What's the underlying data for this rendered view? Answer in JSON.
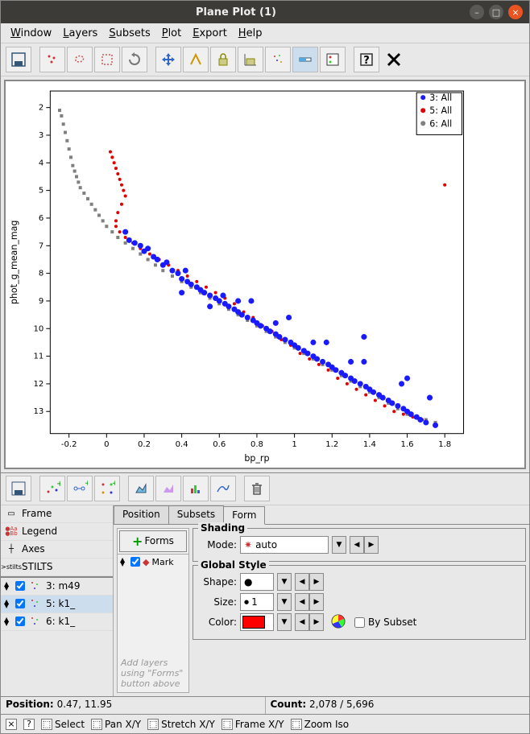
{
  "window": {
    "title": "Plane Plot (1)"
  },
  "menu": {
    "items": [
      "Window",
      "Layers",
      "Subsets",
      "Plot",
      "Export",
      "Help"
    ]
  },
  "status": {
    "position_label": "Position:",
    "position_value": "0.47, 11.95",
    "count_label": "Count:",
    "count_value": "2,078 / 5,696"
  },
  "bottom": {
    "select": "Select",
    "pan": "Pan X/Y",
    "stretch": "Stretch X/Y",
    "frame": "Frame X/Y",
    "zoom": "Zoom Iso"
  },
  "sidebar": {
    "frame": "Frame",
    "legend": "Legend",
    "axes": "Axes",
    "stilts": "STILTS",
    "layers": [
      {
        "label": "3: m49",
        "checked": true
      },
      {
        "label": "5: k1_",
        "checked": true,
        "selected": true
      },
      {
        "label": "6: k1_",
        "checked": true
      }
    ]
  },
  "tabs": {
    "items": [
      "Position",
      "Subsets",
      "Form"
    ],
    "active": 2
  },
  "forms": {
    "button": "Forms",
    "mark_item": "Mark",
    "hint": "Add layers using \"Forms\" button above"
  },
  "shading": {
    "title": "Shading",
    "mode_label": "Mode:",
    "mode_value": "auto"
  },
  "style": {
    "title": "Global Style",
    "shape_label": "Shape:",
    "shape_value": "●",
    "size_label": "Size:",
    "size_value": "1",
    "color_label": "Color:",
    "color_value": "#ff0000",
    "by_subset": "By Subset"
  },
  "chart": {
    "type": "scatter",
    "xlabel": "bp_rp",
    "ylabel": "phot_g_mean_mag",
    "xlim": [
      -0.3,
      1.9
    ],
    "ylim": [
      13.8,
      1.4
    ],
    "xticks": [
      -0.2,
      0,
      0.2,
      0.4,
      0.6,
      0.8,
      1.0,
      1.2,
      1.4,
      1.6,
      1.8
    ],
    "yticks": [
      2,
      3,
      4,
      5,
      6,
      7,
      8,
      9,
      10,
      11,
      12,
      13
    ],
    "background": "#ffffff",
    "axis_color": "#000000",
    "label_fontsize": 11,
    "tick_fontsize": 10,
    "legend": {
      "items": [
        {
          "label": "3: All",
          "color": "#1a1aff"
        },
        {
          "label": "5: All",
          "color": "#e00000"
        },
        {
          "label": "6: All",
          "color": "#808080"
        }
      ]
    },
    "series": [
      {
        "name": "6",
        "color": "#808080",
        "marker": "square",
        "size": 2,
        "points": [
          [
            -0.25,
            2.1
          ],
          [
            -0.24,
            2.3
          ],
          [
            -0.23,
            2.6
          ],
          [
            -0.22,
            2.9
          ],
          [
            -0.21,
            3.2
          ],
          [
            -0.2,
            3.5
          ],
          [
            -0.19,
            3.8
          ],
          [
            -0.18,
            4.1
          ],
          [
            -0.17,
            4.3
          ],
          [
            -0.16,
            4.5
          ],
          [
            -0.15,
            4.7
          ],
          [
            -0.14,
            4.9
          ],
          [
            -0.12,
            5.1
          ],
          [
            -0.1,
            5.3
          ],
          [
            -0.08,
            5.5
          ],
          [
            -0.06,
            5.7
          ],
          [
            -0.04,
            5.9
          ],
          [
            -0.02,
            6.1
          ],
          [
            0.0,
            6.3
          ],
          [
            0.03,
            6.5
          ],
          [
            0.06,
            6.7
          ],
          [
            0.1,
            6.9
          ],
          [
            0.14,
            7.1
          ],
          [
            0.18,
            7.3
          ],
          [
            0.22,
            7.5
          ],
          [
            0.26,
            7.7
          ],
          [
            0.3,
            7.9
          ],
          [
            0.35,
            8.1
          ],
          [
            0.4,
            8.3
          ],
          [
            0.45,
            8.5
          ],
          [
            0.5,
            8.7
          ],
          [
            0.55,
            8.9
          ],
          [
            0.6,
            9.1
          ],
          [
            0.65,
            9.3
          ],
          [
            0.7,
            9.5
          ],
          [
            0.75,
            9.7
          ],
          [
            0.8,
            9.9
          ],
          [
            0.85,
            10.1
          ],
          [
            0.9,
            10.3
          ],
          [
            0.95,
            10.5
          ],
          [
            1.0,
            10.7
          ],
          [
            1.05,
            10.9
          ],
          [
            1.1,
            11.1
          ],
          [
            1.15,
            11.3
          ],
          [
            1.2,
            11.5
          ],
          [
            1.25,
            11.7
          ],
          [
            1.3,
            11.9
          ],
          [
            1.35,
            12.1
          ],
          [
            1.4,
            12.3
          ],
          [
            1.45,
            12.5
          ],
          [
            1.5,
            12.7
          ],
          [
            1.55,
            12.9
          ],
          [
            1.6,
            13.1
          ],
          [
            1.65,
            13.2
          ],
          [
            1.7,
            13.3
          ],
          [
            1.75,
            13.4
          ]
        ]
      },
      {
        "name": "5",
        "color": "#e00000",
        "marker": "circle",
        "size": 2,
        "points": [
          [
            0.02,
            3.6
          ],
          [
            0.03,
            3.8
          ],
          [
            0.04,
            4.0
          ],
          [
            0.05,
            4.2
          ],
          [
            0.06,
            4.4
          ],
          [
            0.07,
            4.6
          ],
          [
            0.08,
            4.8
          ],
          [
            0.09,
            5.0
          ],
          [
            0.1,
            5.2
          ],
          [
            0.08,
            5.5
          ],
          [
            0.06,
            5.8
          ],
          [
            0.05,
            6.1
          ],
          [
            0.05,
            6.3
          ],
          [
            0.07,
            6.5
          ],
          [
            0.1,
            6.7
          ],
          [
            0.14,
            6.9
          ],
          [
            0.18,
            7.1
          ],
          [
            0.23,
            7.3
          ],
          [
            0.28,
            7.5
          ],
          [
            0.33,
            7.7
          ],
          [
            0.38,
            7.9
          ],
          [
            0.43,
            8.1
          ],
          [
            0.48,
            8.3
          ],
          [
            0.53,
            8.5
          ],
          [
            0.58,
            8.7
          ],
          [
            0.63,
            8.9
          ],
          [
            0.68,
            9.1
          ],
          [
            0.73,
            9.4
          ],
          [
            0.78,
            9.6
          ],
          [
            0.83,
            9.9
          ],
          [
            0.88,
            10.1
          ],
          [
            0.93,
            10.4
          ],
          [
            0.98,
            10.6
          ],
          [
            1.03,
            10.9
          ],
          [
            1.08,
            11.1
          ],
          [
            1.13,
            11.3
          ],
          [
            1.18,
            11.5
          ],
          [
            1.23,
            11.8
          ],
          [
            1.28,
            12.0
          ],
          [
            1.33,
            12.2
          ],
          [
            1.38,
            12.4
          ],
          [
            1.43,
            12.6
          ],
          [
            1.48,
            12.8
          ],
          [
            1.53,
            13.0
          ],
          [
            1.58,
            13.1
          ],
          [
            1.63,
            13.2
          ],
          [
            1.68,
            13.3
          ],
          [
            1.8,
            4.8
          ]
        ]
      },
      {
        "name": "3",
        "color": "#1a1aff",
        "marker": "circle",
        "size": 3.5,
        "points": [
          [
            0.1,
            6.5
          ],
          [
            0.12,
            6.8
          ],
          [
            0.15,
            6.9
          ],
          [
            0.18,
            7.0
          ],
          [
            0.2,
            7.2
          ],
          [
            0.22,
            7.1
          ],
          [
            0.25,
            7.4
          ],
          [
            0.27,
            7.5
          ],
          [
            0.3,
            7.7
          ],
          [
            0.32,
            7.6
          ],
          [
            0.35,
            7.9
          ],
          [
            0.38,
            8.0
          ],
          [
            0.4,
            8.2
          ],
          [
            0.42,
            7.9
          ],
          [
            0.43,
            8.3
          ],
          [
            0.45,
            8.4
          ],
          [
            0.48,
            8.5
          ],
          [
            0.5,
            8.6
          ],
          [
            0.52,
            8.7
          ],
          [
            0.55,
            8.8
          ],
          [
            0.58,
            8.9
          ],
          [
            0.6,
            9.0
          ],
          [
            0.62,
            8.8
          ],
          [
            0.63,
            9.1
          ],
          [
            0.65,
            9.2
          ],
          [
            0.68,
            9.3
          ],
          [
            0.7,
            9.4
          ],
          [
            0.72,
            9.5
          ],
          [
            0.75,
            9.6
          ],
          [
            0.77,
            9.0
          ],
          [
            0.78,
            9.7
          ],
          [
            0.8,
            9.8
          ],
          [
            0.82,
            9.9
          ],
          [
            0.85,
            10.0
          ],
          [
            0.87,
            10.1
          ],
          [
            0.9,
            10.2
          ],
          [
            0.92,
            10.3
          ],
          [
            0.95,
            10.4
          ],
          [
            0.97,
            9.6
          ],
          [
            0.98,
            10.5
          ],
          [
            1.0,
            10.6
          ],
          [
            1.02,
            10.7
          ],
          [
            1.05,
            10.8
          ],
          [
            1.07,
            10.9
          ],
          [
            1.1,
            11.0
          ],
          [
            1.12,
            11.1
          ],
          [
            1.15,
            11.2
          ],
          [
            1.17,
            10.5
          ],
          [
            1.18,
            11.3
          ],
          [
            1.2,
            11.4
          ],
          [
            1.22,
            11.5
          ],
          [
            1.25,
            11.6
          ],
          [
            1.27,
            11.7
          ],
          [
            1.3,
            11.8
          ],
          [
            1.32,
            11.9
          ],
          [
            1.35,
            12.0
          ],
          [
            1.37,
            11.2
          ],
          [
            1.38,
            12.1
          ],
          [
            1.4,
            12.2
          ],
          [
            1.42,
            12.3
          ],
          [
            1.45,
            12.4
          ],
          [
            1.47,
            12.5
          ],
          [
            1.5,
            12.6
          ],
          [
            1.52,
            12.7
          ],
          [
            1.55,
            12.8
          ],
          [
            1.57,
            12.0
          ],
          [
            1.58,
            12.9
          ],
          [
            1.6,
            13.0
          ],
          [
            1.62,
            13.1
          ],
          [
            1.65,
            13.2
          ],
          [
            1.67,
            13.3
          ],
          [
            1.7,
            13.4
          ],
          [
            1.72,
            12.5
          ],
          [
            1.75,
            13.5
          ],
          [
            1.37,
            10.3
          ],
          [
            1.6,
            11.8
          ],
          [
            0.4,
            8.7
          ],
          [
            0.55,
            9.2
          ],
          [
            0.7,
            9.0
          ],
          [
            0.9,
            9.8
          ],
          [
            1.1,
            10.5
          ],
          [
            1.3,
            11.2
          ]
        ]
      }
    ]
  }
}
